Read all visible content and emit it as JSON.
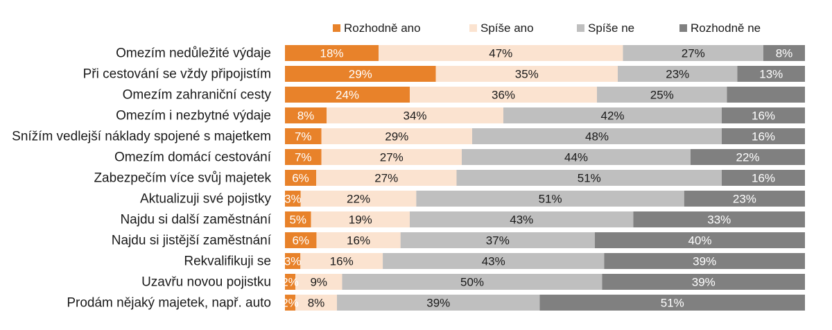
{
  "chart_data": {
    "type": "bar",
    "orientation": "horizontal",
    "stacked": "100%",
    "legend_position": "top",
    "grid": false,
    "xlim": [
      0,
      100
    ],
    "categories": [
      "Omezím nedůležité výdaje",
      "Při cestování se vždy připojistím",
      "Omezím zahraniční cesty",
      "Omezím i nezbytné výdaje",
      "Snížím vedlejší náklady spojené s majetkem",
      "Omezím domácí cestování",
      "Zabezpečím více svůj majetek",
      "Aktualizuji své pojistky",
      "Najdu si další zaměstnání",
      "Najdu si jistější zaměstnání",
      "Rekvalifikuji se",
      "Uzavřu novou pojistku",
      "Prodám nějaký majetek, např. auto"
    ],
    "series": [
      {
        "name": "Rozhodně ano",
        "color": "#e8822a",
        "label_color": "#ffffff",
        "values": [
          18,
          29,
          24,
          8,
          7,
          7,
          6,
          3,
          5,
          6,
          3,
          2,
          2
        ],
        "labels": [
          "18%",
          "29%",
          "24%",
          "8%",
          "7%",
          "7%",
          "6%",
          "3%",
          "5%",
          "6%",
          "3%",
          "2%",
          "2%"
        ]
      },
      {
        "name": "Spíše ano",
        "color": "#fbe3d0",
        "label_color": "#1a1a1a",
        "values": [
          47,
          35,
          36,
          34,
          29,
          27,
          27,
          22,
          19,
          16,
          16,
          9,
          8
        ],
        "labels": [
          "47%",
          "35%",
          "36%",
          "34%",
          "29%",
          "27%",
          "27%",
          "22%",
          "19%",
          "16%",
          "16%",
          "9%",
          "8%"
        ]
      },
      {
        "name": "Spíše ne",
        "color": "#bfbfbf",
        "label_color": "#1a1a1a",
        "values": [
          27,
          23,
          25,
          42,
          48,
          44,
          51,
          51,
          43,
          37,
          43,
          50,
          39
        ],
        "labels": [
          "27%",
          "23%",
          "25%",
          "42%",
          "48%",
          "44%",
          "51%",
          "51%",
          "43%",
          "37%",
          "43%",
          "50%",
          "39%"
        ]
      },
      {
        "name": "Rozhodně ne",
        "color": "#808080",
        "label_color": "#ffffff",
        "values": [
          8,
          13,
          15,
          16,
          16,
          22,
          16,
          23,
          33,
          40,
          39,
          39,
          51
        ],
        "labels": [
          "8%",
          "13%",
          "",
          "16%",
          "16%",
          "22%",
          "16%",
          "23%",
          "33%",
          "40%",
          "39%",
          "39%",
          "51%"
        ]
      }
    ]
  }
}
